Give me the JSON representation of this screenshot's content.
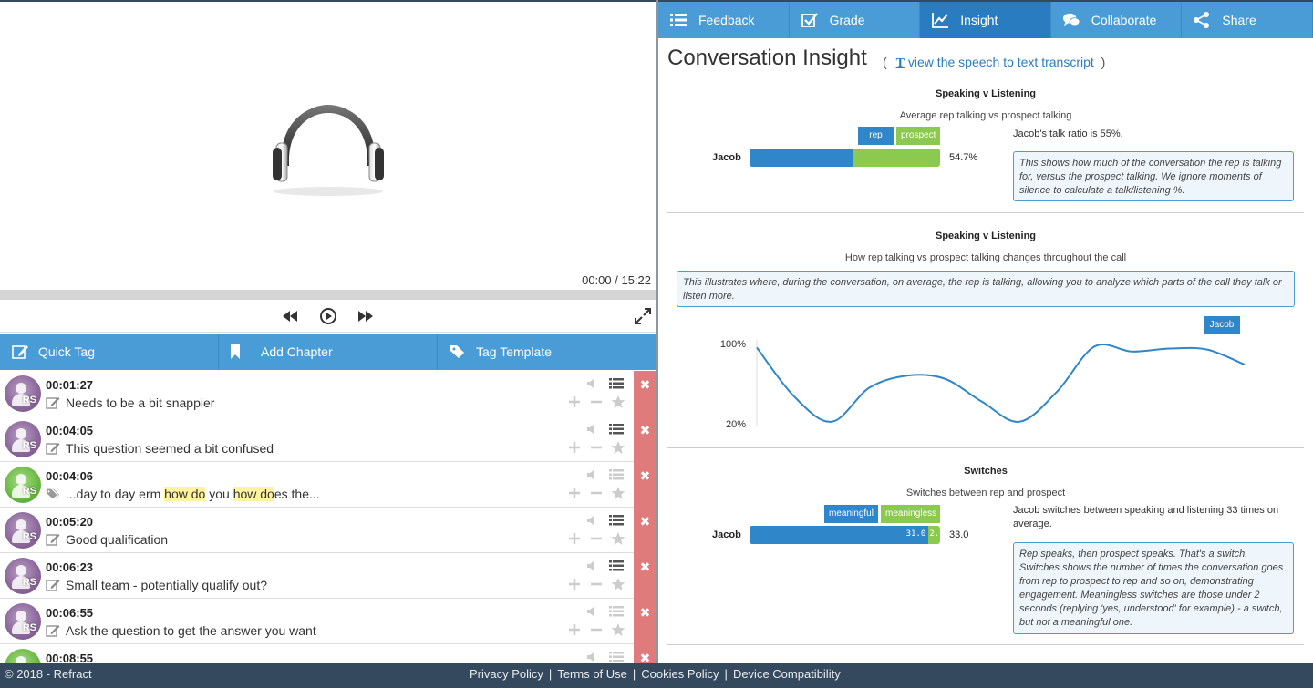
{
  "player": {
    "time_display": "00:00 / 15:22"
  },
  "controls": {
    "rewind_icon": "rewind-icon",
    "play_icon": "play-icon",
    "forward_icon": "fast-forward-icon",
    "expand_icon": "expand-icon"
  },
  "tagbar": {
    "quick_tag": "Quick Tag",
    "add_chapter": "Add Chapter",
    "tag_template": "Tag Template"
  },
  "tags": [
    {
      "time": "00:01:27",
      "avatar": "purple",
      "initials": "RS",
      "type": "note",
      "segments": [
        {
          "t": "Needs to be a bit snappier",
          "h": false
        }
      ]
    },
    {
      "time": "00:04:05",
      "avatar": "purple",
      "initials": "RS",
      "type": "note",
      "segments": [
        {
          "t": "This question seemed a bit confused",
          "h": false
        }
      ]
    },
    {
      "time": "00:04:06",
      "avatar": "green",
      "initials": "RS",
      "type": "tag",
      "segments": [
        {
          "t": "...day to day erm ",
          "h": false
        },
        {
          "t": "how do",
          "h": true
        },
        {
          "t": " you ",
          "h": false
        },
        {
          "t": "how do",
          "h": true
        },
        {
          "t": "es the...",
          "h": false
        }
      ]
    },
    {
      "time": "00:05:20",
      "avatar": "purple",
      "initials": "RS",
      "type": "note",
      "segments": [
        {
          "t": "Good qualification",
          "h": false
        }
      ]
    },
    {
      "time": "00:06:23",
      "avatar": "purple",
      "initials": "RS",
      "type": "note",
      "segments": [
        {
          "t": "Small team - potentially qualify out?",
          "h": false
        }
      ]
    },
    {
      "time": "00:06:55",
      "avatar": "purple",
      "initials": "RS",
      "type": "note",
      "segments": [
        {
          "t": "Ask the question to get the answer you want",
          "h": false
        }
      ]
    },
    {
      "time": "00:08:55",
      "avatar": "green",
      "initials": "RS",
      "type": "note",
      "segments": [
        {
          "t": "",
          "h": false
        }
      ]
    }
  ],
  "tabs": [
    {
      "label": "Feedback",
      "icon": "list-icon"
    },
    {
      "label": "Grade",
      "icon": "checkbox-icon"
    },
    {
      "label": "Insight",
      "icon": "line-chart-icon",
      "active": true
    },
    {
      "label": "Collaborate",
      "icon": "chat-icon"
    },
    {
      "label": "Share",
      "icon": "share-icon"
    }
  ],
  "insight": {
    "title": "Conversation Insight",
    "paren_open": "(",
    "paren_close": ")",
    "transcript_icon_letter": "T",
    "transcript_link": "view the speech to text transcript"
  },
  "talk_ratio": {
    "title": "Speaking v Listening",
    "subtitle": "Average rep talking vs prospect talking",
    "legend": [
      "rep",
      "prospect"
    ],
    "person": "Jacob",
    "value_label": "54.7%",
    "rep_fraction": 0.547,
    "side_text": "Jacob's talk ratio is 55%.",
    "info": "This shows how much of the conversation the rep is talking for, versus the prospect talking. We ignore moments of silence to calculate a talk/listening %."
  },
  "chart_data": {
    "type": "line",
    "title": "Speaking v Listening",
    "subtitle": "How rep talking vs prospect talking changes throughout the call",
    "legend": "Jacob",
    "ytick_labels": [
      "100%",
      "20%"
    ],
    "ylim": [
      20,
      100
    ],
    "series": [
      {
        "name": "Jacob",
        "values": [
          96,
          47,
          22,
          56,
          68,
          65,
          42,
          22,
          52,
          97,
          92,
          95,
          94,
          79
        ]
      }
    ]
  },
  "line_chart_info": "This illustrates where, during the conversation, on average, the rep is talking, allowing you to analyze which parts of the call they talk or listen more.",
  "switches": {
    "title": "Switches",
    "subtitle": "Switches between rep and prospect",
    "legend": [
      "meaningful",
      "meaningless"
    ],
    "person": "Jacob",
    "meaningful": 31.0,
    "meaningful_label": "31.0",
    "meaningless": 2.0,
    "meaningless_label": "2.",
    "total_label": "33.0",
    "side_text": "Jacob switches between speaking and listening 33 times on average.",
    "info": "Rep speaks, then prospect speaks. That's a switch. Switches shows the number of times the conversation goes from rep to prospect to rep and so on, demonstrating engagement. Meaningless switches are those under 2 seconds (replying 'yes, understood' for example) - a switch, but not a meaningful one."
  },
  "colors": {
    "rep": "#2f86c9",
    "prospect": "#8cc94f",
    "tab_bg": "#4a9cd6",
    "tab_active": "#2a7cc0",
    "delete": "#e07b7b",
    "footer": "#34495e"
  },
  "footer": {
    "copyright": "© 2018 - Refract",
    "links": [
      "Privacy Policy",
      "Terms of Use",
      "Cookies Policy",
      "Device Compatibility"
    ],
    "separator": "|"
  }
}
